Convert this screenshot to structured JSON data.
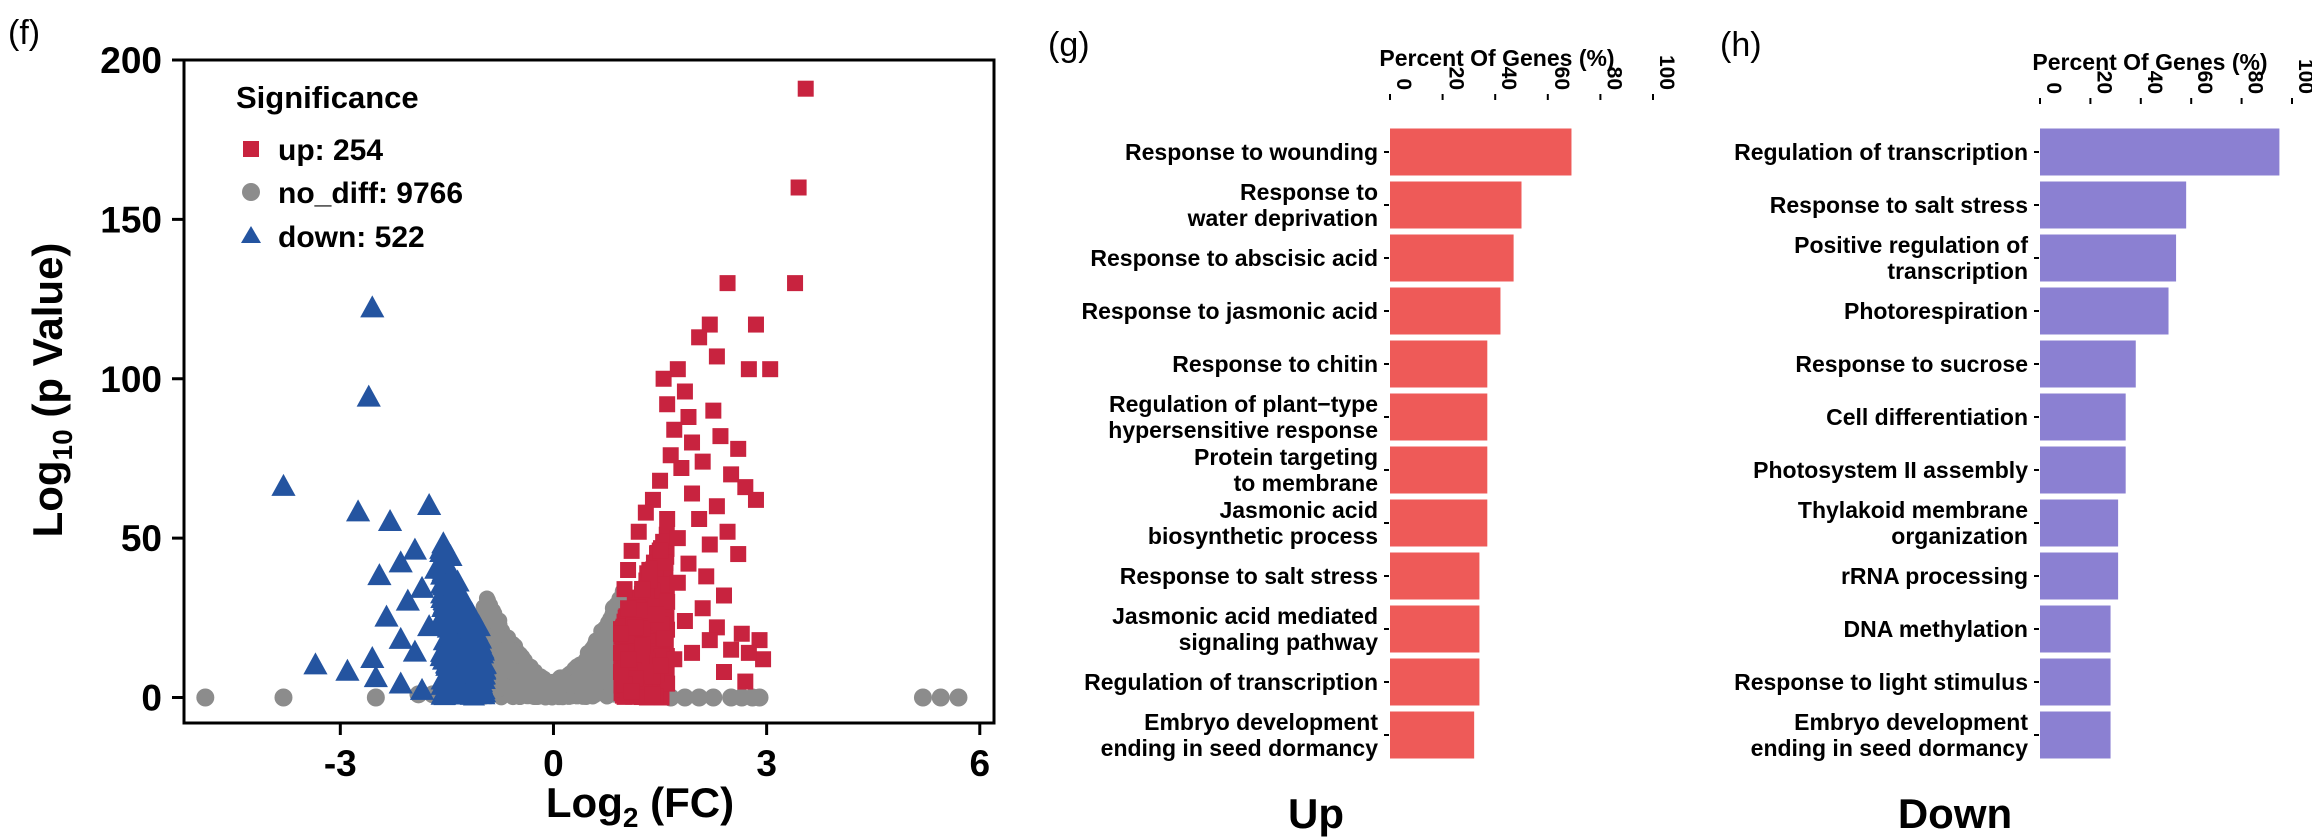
{
  "panels": {
    "f": "(f)",
    "g": "(g)",
    "h": "(h)"
  },
  "colors": {
    "up": "#c8233f",
    "no_diff": "#8c8c8c",
    "down": "#2454a0",
    "bar_up": "#ee5a58",
    "bar_down": "#8b80d2"
  },
  "chart_data": [
    {
      "type": "scatter",
      "panel": "f",
      "xlabel_base": "Log",
      "xlabel_sub": "2",
      "xlabel_rest": " (FC)",
      "ylabel_base": "Log",
      "ylabel_sub": "10",
      "ylabel_rest": " (p Value)",
      "xlim": [
        -5.2,
        6.2
      ],
      "ylim": [
        -8,
        200
      ],
      "xticks": [
        -3,
        0,
        3,
        6
      ],
      "yticks": [
        0,
        50,
        100,
        150,
        200
      ],
      "legend_title": "Significance",
      "legend_position": "top-left",
      "series": [
        {
          "name": "up: 254",
          "key": "up",
          "marker": "square",
          "points": [
            [
              3.55,
              191
            ],
            [
              3.45,
              160
            ],
            [
              3.4,
              130
            ],
            [
              2.45,
              130
            ],
            [
              2.85,
              117
            ],
            [
              3.05,
              103
            ],
            [
              2.75,
              103
            ],
            [
              2.2,
              117
            ],
            [
              2.05,
              113
            ],
            [
              2.3,
              107
            ],
            [
              1.75,
              103
            ],
            [
              1.55,
              100
            ],
            [
              1.85,
              96
            ],
            [
              1.6,
              92
            ],
            [
              1.9,
              88
            ],
            [
              2.25,
              90
            ],
            [
              1.7,
              84
            ],
            [
              1.95,
              80
            ],
            [
              2.35,
              82
            ],
            [
              2.6,
              78
            ],
            [
              1.65,
              76
            ],
            [
              1.8,
              72
            ],
            [
              2.1,
              74
            ],
            [
              2.5,
              70
            ],
            [
              2.7,
              66
            ],
            [
              1.5,
              68
            ],
            [
              1.95,
              64
            ],
            [
              2.3,
              60
            ],
            [
              2.85,
              62
            ],
            [
              1.4,
              62
            ],
            [
              1.6,
              56
            ],
            [
              2.05,
              56
            ],
            [
              2.45,
              52
            ],
            [
              1.3,
              58
            ],
            [
              1.75,
              50
            ],
            [
              2.2,
              48
            ],
            [
              1.2,
              52
            ],
            [
              1.5,
              46
            ],
            [
              1.9,
              42
            ],
            [
              2.6,
              45
            ],
            [
              1.1,
              46
            ],
            [
              1.35,
              40
            ],
            [
              1.75,
              36
            ],
            [
              2.15,
              38
            ],
            [
              1.05,
              40
            ],
            [
              1.25,
              34
            ],
            [
              1.6,
              30
            ],
            [
              2.4,
              32
            ],
            [
              1.0,
              34
            ],
            [
              1.45,
              26
            ],
            [
              1.85,
              24
            ],
            [
              2.3,
              22
            ],
            [
              2.65,
              20
            ],
            [
              2.9,
              18
            ],
            [
              2.95,
              12
            ],
            [
              2.75,
              14
            ],
            [
              2.5,
              15
            ],
            [
              2.2,
              18
            ],
            [
              1.95,
              14
            ],
            [
              1.7,
              12
            ],
            [
              1.5,
              10
            ],
            [
              1.3,
              8
            ],
            [
              1.15,
              6
            ],
            [
              1.0,
              4
            ],
            [
              1.1,
              2
            ],
            [
              1.4,
              1
            ],
            [
              1.25,
              16
            ],
            [
              1.15,
              22
            ],
            [
              1.05,
              28
            ],
            [
              0.95,
              14
            ],
            [
              0.95,
              8
            ],
            [
              0.95,
              20
            ],
            [
              1.05,
              12
            ],
            [
              2.1,
              28
            ],
            [
              2.4,
              8
            ],
            [
              2.7,
              5
            ]
          ],
          "dense_band": {
            "x": [
              0.95,
              1.6
            ],
            "y": [
              0,
              45
            ]
          }
        },
        {
          "name": "no_diff: 9766",
          "key": "no_diff",
          "marker": "circle",
          "points": [
            [
              -4.9,
              0
            ],
            [
              -3.8,
              0
            ],
            [
              -2.5,
              0
            ],
            [
              5.2,
              0
            ],
            [
              5.45,
              0
            ],
            [
              5.7,
              0
            ],
            [
              1.65,
              0
            ],
            [
              1.85,
              0
            ],
            [
              2.05,
              0
            ],
            [
              2.25,
              0
            ],
            [
              2.5,
              0
            ],
            [
              2.65,
              0
            ],
            [
              2.8,
              0
            ],
            [
              2.9,
              0
            ],
            [
              -0.25,
              5
            ],
            [
              0.1,
              6
            ],
            [
              0.4,
              9
            ],
            [
              0.6,
              14
            ],
            [
              0.75,
              20
            ],
            [
              0.85,
              28
            ],
            [
              -0.55,
              8
            ],
            [
              -0.75,
              13
            ],
            [
              -0.9,
              18
            ],
            [
              -0.65,
              11
            ],
            [
              0.25,
              4
            ],
            [
              -1.5,
              1
            ],
            [
              -1.7,
              1
            ],
            [
              -1.9,
              1
            ]
          ],
          "valley": true
        },
        {
          "name": "down: 522",
          "key": "down",
          "marker": "triangle",
          "points": [
            [
              -2.55,
              122
            ],
            [
              -2.6,
              94
            ],
            [
              -3.8,
              66
            ],
            [
              -1.75,
              60
            ],
            [
              -2.75,
              58
            ],
            [
              -2.3,
              55
            ],
            [
              -1.55,
              48
            ],
            [
              -1.95,
              46
            ],
            [
              -2.15,
              42
            ],
            [
              -1.45,
              44
            ],
            [
              -1.65,
              40
            ],
            [
              -2.45,
              38
            ],
            [
              -1.35,
              36
            ],
            [
              -1.85,
              34
            ],
            [
              -2.05,
              30
            ],
            [
              -1.25,
              30
            ],
            [
              -1.55,
              28
            ],
            [
              -2.35,
              25
            ],
            [
              -1.15,
              26
            ],
            [
              -1.75,
              22
            ],
            [
              -1.45,
              20
            ],
            [
              -2.15,
              18
            ],
            [
              -1.05,
              22
            ],
            [
              -1.35,
              16
            ],
            [
              -1.95,
              14
            ],
            [
              -2.55,
              12
            ],
            [
              -1.2,
              12
            ],
            [
              -3.35,
              10
            ],
            [
              -2.9,
              8
            ],
            [
              -2.5,
              6
            ],
            [
              -2.15,
              4
            ],
            [
              -1.85,
              2
            ],
            [
              -1.55,
              1
            ],
            [
              -1.3,
              2
            ],
            [
              -1.05,
              5
            ],
            [
              -1.0,
              10
            ],
            [
              -1.0,
              15
            ]
          ],
          "dense_band": {
            "x": [
              -1.6,
              -0.95
            ],
            "y": [
              0,
              40
            ]
          }
        }
      ]
    },
    {
      "type": "bar",
      "orientation": "horizontal",
      "panel": "g",
      "title": "Up",
      "axis_title": "Percent Of Genes (%)",
      "xlim": [
        0,
        100
      ],
      "xticks": [
        0,
        20,
        40,
        60,
        80,
        100
      ],
      "categories": [
        [
          "Response to wounding"
        ],
        [
          "Response to",
          "water deprivation"
        ],
        [
          "Response to abscisic acid"
        ],
        [
          "Response to jasmonic acid"
        ],
        [
          "Response to chitin"
        ],
        [
          "Regulation of plant−type",
          "hypersensitive response"
        ],
        [
          "Protein targeting",
          "to membrane"
        ],
        [
          "Jasmonic acid",
          "biosynthetic process"
        ],
        [
          "Response to salt stress"
        ],
        [
          "Jasmonic acid mediated",
          "signaling pathway"
        ],
        [
          "Regulation of transcription"
        ],
        [
          "Embryo development",
          "ending in seed dormancy"
        ]
      ],
      "values": [
        69,
        50,
        47,
        42,
        37,
        37,
        37,
        37,
        34,
        34,
        34,
        32
      ]
    },
    {
      "type": "bar",
      "orientation": "horizontal",
      "panel": "h",
      "title": "Down",
      "axis_title": "Percent Of Genes (%)",
      "xlim": [
        0,
        100
      ],
      "xticks": [
        0,
        20,
        40,
        60,
        80,
        100
      ],
      "categories": [
        [
          "Regulation of transcription"
        ],
        [
          "Response to salt stress"
        ],
        [
          "Positive regulation of",
          "transcription"
        ],
        [
          "Photorespiration"
        ],
        [
          "Response to sucrose"
        ],
        [
          "Cell differentiation"
        ],
        [
          "Photosystem II assembly"
        ],
        [
          "Thylakoid membrane",
          "organization"
        ],
        [
          "rRNA processing"
        ],
        [
          "DNA methylation"
        ],
        [
          "Response to light stimulus"
        ],
        [
          "Embryo development",
          "ending in seed dormancy"
        ]
      ],
      "values": [
        95,
        58,
        54,
        51,
        38,
        34,
        34,
        31,
        31,
        28,
        28,
        28
      ]
    }
  ]
}
